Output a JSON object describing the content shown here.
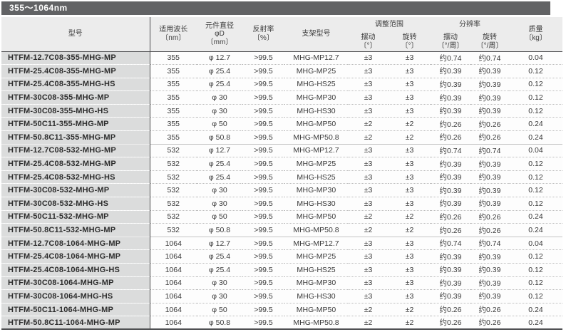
{
  "title": "355〜1064nm",
  "colors": {
    "title_bar_bg": "#626365",
    "title_text": "#ffffff",
    "header_bg": "#ececec",
    "model_column_bg": "#dbdcdc",
    "dark_line": "#4c4c4e",
    "body_bg": "#fdfdfd"
  },
  "header": {
    "model": "型号",
    "wavelength": "适用波长\n〔nm〕",
    "diameter": "元件直径\nφD\n〔mm〕",
    "reflectivity": "反射率\n〔%〕",
    "mount": "支架型号",
    "adjust_range_group": "调整范围",
    "resolution_group": "分辨率",
    "swing_range": "摆动\n〔°〕",
    "rotate_range": "旋转\n〔°〕",
    "swing_resolution": "摆动\n〔°/周〕",
    "rotate_resolution": "旋转\n〔°/周〕",
    "weight": "质量\n〔kg〕"
  },
  "table": {
    "rows": [
      [
        "HTFM-12.7C08-355-MHG-MP",
        "355",
        "φ 12.7",
        ">99.5",
        "MHG-MP12.7",
        "±3",
        "±3",
        "约0.74",
        "约0.74",
        "0.04"
      ],
      [
        "HTFM-25.4C08-355-MHG-MP",
        "355",
        "φ 25.4",
        ">99.5",
        "MHG-MP25",
        "±3",
        "±3",
        "约0.39",
        "约0.39",
        "0.12"
      ],
      [
        "HTFM-25.4C08-355-MHG-HS",
        "355",
        "φ 25.4",
        ">99.5",
        "MHG-HS25",
        "±3",
        "±3",
        "约0.39",
        "约0.39",
        "0.12"
      ],
      [
        "HTFM-30C08-355-MHG-MP",
        "355",
        "φ 30",
        ">99.5",
        "MHG-MP30",
        "±3",
        "±3",
        "约0.39",
        "约0.39",
        "0.12"
      ],
      [
        "HTFM-30C08-355-MHG-HS",
        "355",
        "φ 30",
        ">99.5",
        "MHG-HS30",
        "±3",
        "±3",
        "约0.39",
        "约0.39",
        "0.12"
      ],
      [
        "HTFM-50C11-355-MHG-MP",
        "355",
        "φ 50",
        ">99.5",
        "MHG-MP50",
        "±2",
        "±2",
        "约0.26",
        "约0.26",
        "0.24"
      ],
      [
        "HTFM-50.8C11-355-MHG-MP",
        "355",
        "φ 50.8",
        ">99.5",
        "MHG-MP50.8",
        "±2",
        "±2",
        "约0.26",
        "约0.26",
        "0.24"
      ],
      [
        "HTFM-12.7C08-532-MHG-MP",
        "532",
        "φ 12.7",
        ">99.5",
        "MHG-MP12.7",
        "±3",
        "±3",
        "约0.74",
        "约0.74",
        "0.04"
      ],
      [
        "HTFM-25.4C08-532-MHG-MP",
        "532",
        "φ 25.4",
        ">99.5",
        "MHG-MP25",
        "±3",
        "±3",
        "约0.39",
        "约0.39",
        "0.12"
      ],
      [
        "HTFM-25.4C08-532-MHG-HS",
        "532",
        "φ 25.4",
        ">99.5",
        "MHG-HS25",
        "±3",
        "±3",
        "约0.39",
        "约0.39",
        "0.12"
      ],
      [
        "HTFM-30C08-532-MHG-MP",
        "532",
        "φ 30",
        ">99.5",
        "MHG-MP30",
        "±3",
        "±3",
        "约0.39",
        "约0.39",
        "0.12"
      ],
      [
        "HTFM-30C08-532-MHG-HS",
        "532",
        "φ 30",
        ">99.5",
        "MHG-HS30",
        "±3",
        "±3",
        "约0.39",
        "约0.39",
        "0.12"
      ],
      [
        "HTFM-50C11-532-MHG-MP",
        "532",
        "φ 50",
        ">99.5",
        "MHG-MP50",
        "±2",
        "±2",
        "约0.26",
        "约0.26",
        "0.24"
      ],
      [
        "HTFM-50.8C11-532-MHG-MP",
        "532",
        "φ 50.8",
        ">99.5",
        "MHG-MP50.8",
        "±2",
        "±2",
        "约0.26",
        "约0.26",
        "0.24"
      ],
      [
        "HTFM-12.7C08-1064-MHG-MP",
        "1064",
        "φ 12.7",
        ">99.5",
        "MHG-MP12.7",
        "±3",
        "±3",
        "约0.74",
        "约0.74",
        "0.04"
      ],
      [
        "HTFM-25.4C08-1064-MHG-MP",
        "1064",
        "φ 25.4",
        ">99.5",
        "MHG-MP25",
        "±3",
        "±3",
        "约0.39",
        "约0.39",
        "0.12"
      ],
      [
        "HTFM-25.4C08-1064-MHG-HS",
        "1064",
        "φ 25.4",
        ">99.5",
        "MHG-HS25",
        "±3",
        "±3",
        "约0.39",
        "约0.39",
        "0.12"
      ],
      [
        "HTFM-30C08-1064-MHG-MP",
        "1064",
        "φ 30",
        ">99.5",
        "MHG-MP30",
        "±3",
        "±3",
        "约0.39",
        "约0.39",
        "0.12"
      ],
      [
        "HTFM-30C08-1064-MHG-HS",
        "1064",
        "φ 30",
        ">99.5",
        "MHG-HS30",
        "±3",
        "±3",
        "约0.39",
        "约0.39",
        "0.12"
      ],
      [
        "HTFM-50C11-1064-MHG-MP",
        "1064",
        "φ 50",
        ">99.5",
        "MHG-MP50",
        "±2",
        "±2",
        "约0.26",
        "约0.26",
        "0.24"
      ],
      [
        "HTFM-50.8C11-1064-MHG-MP",
        "1064",
        "φ 50.8",
        ">99.5",
        "MHG-MP50.8",
        "±2",
        "±2",
        "约0.26",
        "约0.26",
        "0.24"
      ]
    ]
  }
}
